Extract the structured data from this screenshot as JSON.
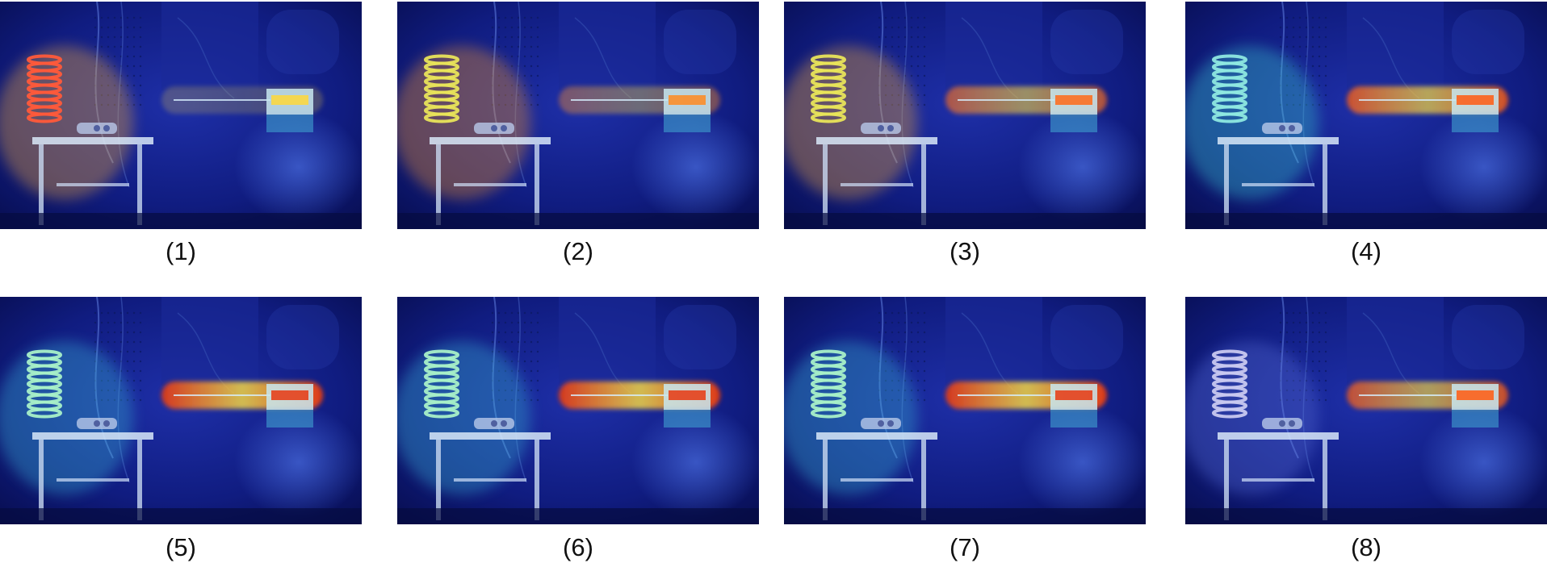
{
  "panels": [
    {
      "caption": "(1)",
      "spring_heat": "#ff5a3a",
      "beam_heat": "#ffd83a",
      "table_heat": "#ffb030",
      "beam_strength": 0.25
    },
    {
      "caption": "(2)",
      "spring_heat": "#e8e45a",
      "beam_heat": "#ff8a20",
      "table_heat": "#ff9a24",
      "beam_strength": 0.45
    },
    {
      "caption": "(3)",
      "spring_heat": "#e8e45a",
      "beam_heat": "#ff6a18",
      "table_heat": "#ffb030",
      "beam_strength": 0.7
    },
    {
      "caption": "(4)",
      "spring_heat": "#8ee8e0",
      "beam_heat": "#ff5a10",
      "table_heat": "#3ad0d0",
      "beam_strength": 0.85
    },
    {
      "caption": "(5)",
      "spring_heat": "#a8f0c8",
      "beam_heat": "#e83810",
      "table_heat": "#3ab8d8",
      "beam_strength": 1.0
    },
    {
      "caption": "(6)",
      "spring_heat": "#a8f0c8",
      "beam_heat": "#e83810",
      "table_heat": "#3ab8d8",
      "beam_strength": 1.0
    },
    {
      "caption": "(7)",
      "spring_heat": "#a8f0c8",
      "beam_heat": "#e83810",
      "table_heat": "#3ab8d8",
      "beam_strength": 1.0
    },
    {
      "caption": "(8)",
      "spring_heat": "#c8c8f0",
      "beam_heat": "#ff5a10",
      "table_heat": "#5a70d8",
      "beam_strength": 0.8
    }
  ]
}
